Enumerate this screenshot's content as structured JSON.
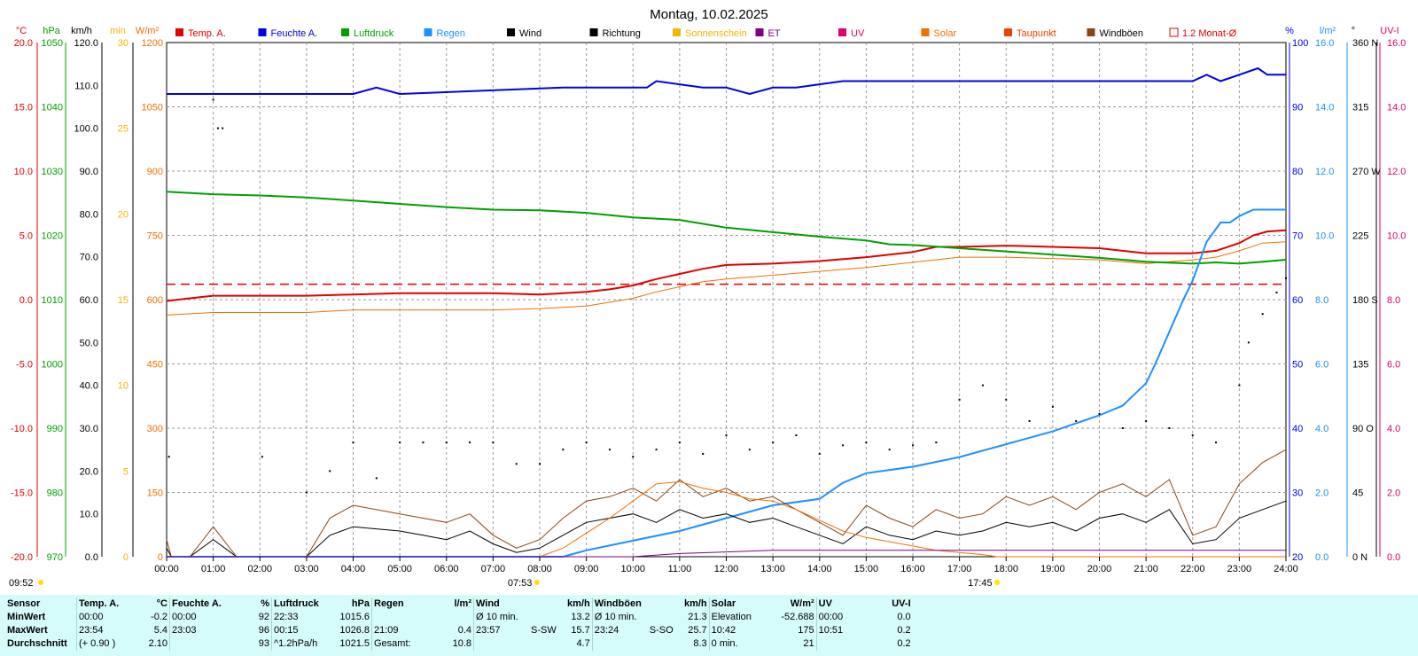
{
  "title": "Montag, 10.02.2025",
  "legend": [
    {
      "label": "Temp. A.",
      "color": "#e00000"
    },
    {
      "label": "Feuchte A.",
      "color": "#0000e6"
    },
    {
      "label": "Luftdruck",
      "color": "#00a000"
    },
    {
      "label": "Regen",
      "color": "#1e90ff"
    },
    {
      "label": "Wind",
      "color": "#000000"
    },
    {
      "label": "Richtung",
      "color": "#000000"
    },
    {
      "label": "Sonnenschein",
      "color": "#f2b600"
    },
    {
      "label": "ET",
      "color": "#800080"
    },
    {
      "label": "UV",
      "color": "#e0006a"
    },
    {
      "label": "Solar",
      "color": "#f07000"
    },
    {
      "label": "Taupunkt",
      "color": "#f04000"
    },
    {
      "label": "Windböen",
      "color": "#8b4513"
    },
    {
      "label": "1.2 Monat-Ø",
      "color": "#e00000"
    }
  ],
  "axes": {
    "temp": {
      "unit": "°C",
      "color": "#e00000",
      "ticks": [
        "20.0",
        "15.0",
        "10.0",
        "5.0",
        "0.0",
        "-5.0",
        "-10.0",
        "-15.0",
        "-20.0"
      ]
    },
    "pressure": {
      "unit": "hPa",
      "color": "#00a000",
      "ticks": [
        "1050",
        "1040",
        "1030",
        "1020",
        "1010",
        "1000",
        "990",
        "980",
        "970"
      ]
    },
    "wind": {
      "unit": "km/h",
      "color": "#000000",
      "ticks": [
        "120.0",
        "110.0",
        "100.0",
        "90.0",
        "80.0",
        "70.0",
        "60.0",
        "50.0",
        "40.0",
        "30.0",
        "20.0",
        "10.0",
        "0.0"
      ]
    },
    "sunshine": {
      "unit": "min",
      "color": "#f2b600",
      "ticks": [
        "30",
        "25",
        "20",
        "15",
        "10",
        "5",
        "0"
      ]
    },
    "solar": {
      "unit": "W/m²",
      "color": "#f07000",
      "ticks": [
        "1200",
        "1050",
        "900",
        "750",
        "600",
        "450",
        "300",
        "150",
        "0"
      ]
    },
    "humidity": {
      "unit": "%",
      "color": "#0000e6",
      "ticks": [
        "100",
        "90",
        "80",
        "70",
        "60",
        "50",
        "40",
        "30",
        "20"
      ]
    },
    "rain": {
      "unit": "l/m²",
      "color": "#1e90ff",
      "ticks": [
        "16.0",
        "14.0",
        "12.0",
        "10.0",
        "8.0",
        "6.0",
        "4.0",
        "2.0",
        "0.0"
      ]
    },
    "direction": {
      "unit": "°",
      "color": "#000000",
      "ticks": [
        "360 N",
        "315",
        "270 W",
        "225",
        "180 S",
        "135",
        "90 O",
        "45",
        "0 N"
      ]
    },
    "uv": {
      "unit": "UV-I",
      "color": "#e0006a",
      "ticks": [
        "16.0",
        "14.0",
        "12.0",
        "10.0",
        "8.0",
        "6.0",
        "4.0",
        "2.0",
        "0.0"
      ]
    }
  },
  "x_ticks": [
    "00:00",
    "01:00",
    "02:00",
    "03:00",
    "04:00",
    "05:00",
    "06:00",
    "07:00",
    "08:00",
    "09:00",
    "10:00",
    "11:00",
    "12:00",
    "13:00",
    "14:00",
    "15:00",
    "16:00",
    "17:00",
    "18:00",
    "19:00",
    "20:00",
    "21:00",
    "22:00",
    "23:00",
    "24:00"
  ],
  "sun": {
    "sunrise": "07:53",
    "sunset": "17:45",
    "daylength": "09:52"
  },
  "chart_data": {
    "type": "line",
    "title": "Montag, 10.02.2025",
    "x_unit": "hours",
    "xlim": [
      0,
      24
    ],
    "series": [
      {
        "name": "Temp. A.",
        "axis": "temp",
        "color": "#e00000",
        "x": [
          0,
          0.5,
          1,
          2,
          3,
          4,
          5,
          6,
          7,
          8,
          9,
          9.5,
          10,
          10.5,
          11,
          11.5,
          12,
          13,
          14,
          15,
          16,
          16.5,
          17,
          18,
          19,
          20,
          21,
          21.5,
          22,
          22.5,
          23,
          23.3,
          23.6,
          24
        ],
        "y": [
          -0.1,
          0.1,
          0.3,
          0.3,
          0.3,
          0.4,
          0.5,
          0.5,
          0.5,
          0.4,
          0.6,
          0.8,
          1.1,
          1.6,
          2.0,
          2.4,
          2.7,
          2.8,
          3.0,
          3.3,
          3.7,
          4.1,
          4.1,
          4.2,
          4.1,
          4.0,
          3.6,
          3.6,
          3.6,
          3.8,
          4.4,
          5.0,
          5.3,
          5.4
        ]
      },
      {
        "name": "Taupunkt",
        "axis": "temp",
        "color": "#f07000",
        "x": [
          0,
          1,
          2,
          3,
          4,
          5,
          6,
          7,
          8,
          9,
          9.5,
          10,
          10.5,
          11,
          11.5,
          12,
          13,
          14,
          15,
          16,
          17,
          18,
          19,
          20,
          21,
          22,
          22.5,
          23,
          23.5,
          24
        ],
        "y": [
          -1.2,
          -1.0,
          -1.0,
          -1.0,
          -0.8,
          -0.8,
          -0.8,
          -0.8,
          -0.7,
          -0.5,
          -0.2,
          0.1,
          0.6,
          1.0,
          1.4,
          1.6,
          1.9,
          2.2,
          2.5,
          2.9,
          3.3,
          3.3,
          3.2,
          3.1,
          2.8,
          3.1,
          3.3,
          3.8,
          4.4,
          4.5
        ]
      },
      {
        "name": "1.2 Monat-Ø",
        "axis": "temp",
        "color": "#e00000",
        "dashed": true,
        "x": [
          0,
          24
        ],
        "y": [
          1.2,
          1.2
        ]
      },
      {
        "name": "Luftdruck",
        "axis": "pressure",
        "color": "#00a000",
        "x": [
          0,
          1,
          2,
          3,
          4,
          5,
          6,
          7,
          8,
          9,
          10,
          11,
          12,
          13,
          14,
          15,
          15.5,
          16,
          17,
          18,
          19,
          20,
          21,
          22,
          22.5,
          23,
          23.5,
          24
        ],
        "y": [
          1026.8,
          1026.4,
          1026.2,
          1025.9,
          1025.4,
          1024.9,
          1024.4,
          1024.0,
          1023.9,
          1023.5,
          1022.8,
          1022.4,
          1021.2,
          1020.5,
          1019.8,
          1019.2,
          1018.6,
          1018.5,
          1018.0,
          1017.5,
          1017.0,
          1016.5,
          1015.9,
          1015.6,
          1015.8,
          1015.6,
          1015.9,
          1016.2
        ]
      },
      {
        "name": "Feuchte A.",
        "axis": "humidity",
        "color": "#0000e6",
        "x": [
          0,
          4,
          4.5,
          5,
          8.5,
          10.3,
          10.5,
          11.5,
          12,
          12.5,
          13,
          13.5,
          14.5,
          15,
          21.5,
          22,
          22.3,
          22.6,
          23,
          23.4,
          23.6,
          24
        ],
        "y": [
          92,
          92,
          93,
          92,
          93,
          93,
          94,
          93,
          93,
          92,
          93,
          93,
          94,
          94,
          94,
          94,
          95,
          94,
          95,
          96,
          95,
          95
        ]
      },
      {
        "name": "Regen",
        "axis": "rain",
        "color": "#1e90ff",
        "x": [
          0,
          8.5,
          9,
          10,
          11,
          12,
          13,
          14,
          14.5,
          15,
          16,
          17,
          18,
          19,
          20,
          20.5,
          21,
          21.2,
          21.5,
          21.8,
          22,
          22.3,
          22.6,
          22.8,
          23,
          23.3,
          23.6,
          24
        ],
        "y": [
          0,
          0,
          0.2,
          0.5,
          0.8,
          1.2,
          1.6,
          1.8,
          2.3,
          2.6,
          2.8,
          3.1,
          3.5,
          3.9,
          4.4,
          4.7,
          5.4,
          6.0,
          7.0,
          8.0,
          8.6,
          9.8,
          10.4,
          10.4,
          10.6,
          10.8,
          10.8,
          10.8
        ]
      },
      {
        "name": "Wind",
        "axis": "wind",
        "color": "#000000",
        "x": [
          0,
          0.1,
          0.5,
          1,
          1.5,
          2,
          3,
          3.5,
          4,
          5,
          5.5,
          6,
          6.5,
          7,
          7.5,
          8,
          8.5,
          9,
          9.5,
          10,
          10.5,
          11,
          11.5,
          12,
          12.5,
          13,
          13.5,
          14,
          14.5,
          15,
          15.5,
          16,
          16.5,
          17,
          17.5,
          18,
          18.5,
          19,
          19.5,
          20,
          20.5,
          21,
          21.5,
          22,
          22.5,
          23,
          23.5,
          24
        ],
        "y": [
          2,
          0,
          0,
          4,
          0,
          0,
          0,
          5,
          7,
          6,
          5,
          4,
          6,
          3,
          1,
          2,
          5,
          8,
          9,
          10,
          8,
          11,
          9,
          10,
          8,
          9,
          7,
          5,
          3,
          7,
          5,
          4,
          6,
          5,
          6,
          8,
          7,
          8,
          6,
          9,
          10,
          8,
          11,
          3,
          4,
          9,
          11,
          13
        ]
      },
      {
        "name": "Windböen",
        "axis": "wind",
        "color": "#8b4513",
        "x": [
          0,
          0.1,
          0.5,
          1,
          1.5,
          2,
          3,
          3.5,
          4,
          5,
          5.5,
          6,
          6.5,
          7,
          7.5,
          8,
          8.5,
          9,
          9.5,
          10,
          10.5,
          11,
          11.5,
          12,
          12.5,
          13,
          13.5,
          14,
          14.5,
          15,
          15.5,
          16,
          16.5,
          17,
          17.5,
          18,
          18.5,
          19,
          19.5,
          20,
          20.5,
          21,
          21.5,
          22,
          22.5,
          23,
          23.5,
          24
        ],
        "y": [
          4,
          0,
          0,
          7,
          0,
          0,
          0,
          9,
          12,
          10,
          9,
          8,
          10,
          5,
          2,
          4,
          9,
          13,
          14,
          16,
          13,
          18,
          14,
          16,
          13,
          14,
          11,
          8,
          5,
          12,
          9,
          7,
          11,
          9,
          10,
          14,
          12,
          14,
          11,
          15,
          17,
          14,
          18,
          5,
          7,
          17,
          22,
          25
        ]
      },
      {
        "name": "Solar",
        "axis": "solar",
        "color": "#f07000",
        "x": [
          0,
          8,
          8.5,
          9,
          9.5,
          10,
          10.5,
          11,
          11.5,
          12,
          12.5,
          13,
          13.5,
          14,
          14.5,
          15,
          15.5,
          16,
          16.5,
          17,
          17.5,
          17.8,
          24
        ],
        "y": [
          0,
          0,
          20,
          55,
          90,
          130,
          170,
          175,
          160,
          150,
          135,
          130,
          110,
          85,
          60,
          45,
          35,
          25,
          15,
          10,
          5,
          0,
          0
        ]
      },
      {
        "name": "UV",
        "axis": "uv",
        "color": "#800080",
        "x": [
          0,
          10,
          11,
          12,
          13,
          14,
          15,
          16,
          17,
          18,
          24
        ],
        "y": [
          0,
          0,
          0.1,
          0.15,
          0.2,
          0.2,
          0.2,
          0.2,
          0.2,
          0.2,
          0.2
        ]
      },
      {
        "name": "Richtung",
        "axis": "direction",
        "type": "scatter",
        "color": "#000000",
        "x": [
          0.05,
          1,
          1.1,
          1.2,
          2.05,
          3,
          3.5,
          4,
          4.5,
          5,
          5.5,
          6,
          6.5,
          7,
          7.5,
          8,
          8.5,
          9,
          9.5,
          10,
          10.5,
          11,
          11.5,
          12,
          12.5,
          13,
          13.5,
          14,
          14.5,
          15,
          15.5,
          16,
          16.5,
          17,
          17.5,
          18,
          18.5,
          19,
          19.5,
          20,
          20.5,
          21,
          21.5,
          22,
          22.5,
          23,
          23.2,
          23.5,
          23.8,
          24
        ],
        "y": [
          70,
          320,
          300,
          300,
          70,
          45,
          60,
          80,
          55,
          80,
          80,
          80,
          80,
          80,
          65,
          65,
          75,
          80,
          75,
          70,
          75,
          80,
          72,
          85,
          75,
          80,
          85,
          72,
          78,
          80,
          75,
          78,
          80,
          110,
          120,
          110,
          95,
          105,
          95,
          100,
          90,
          95,
          90,
          85,
          80,
          120,
          150,
          170,
          185,
          195
        ]
      }
    ]
  },
  "summary": {
    "headers": {
      "sensor": "Sensor",
      "temp": "Temp. A.",
      "temp_unit": "°C",
      "hum": "Feuchte A.",
      "hum_unit": "%",
      "press": "Luftdruck",
      "press_unit": "hPa",
      "rain": "Regen",
      "rain_unit": "l/m²",
      "wind": "Wind",
      "wind_unit": "km/h",
      "gust": "Windböen",
      "gust_unit": "km/h",
      "solar": "Solar",
      "solar_unit": "W/m²",
      "uv": "UV",
      "uv_unit": "UV-I"
    },
    "rows": [
      {
        "label": "MinWert",
        "temp_t": "00:00",
        "temp_v": "-0.2",
        "hum_t": "00:00",
        "hum_v": "92",
        "press_t": "22:33",
        "press_v": "1015.6",
        "rain_t": "",
        "rain_v": "",
        "wind_t": "Ø 10 min.",
        "wind_d": "",
        "wind_v": "13.2",
        "gust_t": "Ø 10 min.",
        "gust_d": "",
        "gust_v": "21.3",
        "solar_t": "Elevation",
        "solar_v": "-52.688",
        "uv_t": "00:00",
        "uv_v": "0.0"
      },
      {
        "label": "MaxWert",
        "temp_t": "23:54",
        "temp_v": "5.4",
        "hum_t": "23:03",
        "hum_v": "96",
        "press_t": "00:15",
        "press_v": "1026.8",
        "rain_t": "21:09",
        "rain_v": "0.4",
        "wind_t": "23:57",
        "wind_d": "S-SW",
        "wind_v": "15.7",
        "gust_t": "23:24",
        "gust_d": "S-SO",
        "gust_v": "25.7",
        "solar_t": "10:42",
        "solar_v": "175",
        "uv_t": "10:51",
        "uv_v": "0.2"
      },
      {
        "label": "Durchschnitt",
        "temp_t": "(+ 0.90 )",
        "temp_v": "2.10",
        "hum_t": "",
        "hum_v": "93",
        "press_t": "^1.2hPa/h",
        "press_v": "1021.5",
        "rain_t": "Gesamt:",
        "rain_v": "10.8",
        "wind_t": "",
        "wind_d": "",
        "wind_v": "4.7",
        "gust_t": "",
        "gust_d": "",
        "gust_v": "8.3",
        "solar_t": "0 min.",
        "solar_v": "21",
        "uv_t": "",
        "uv_v": "0.2"
      }
    ]
  }
}
